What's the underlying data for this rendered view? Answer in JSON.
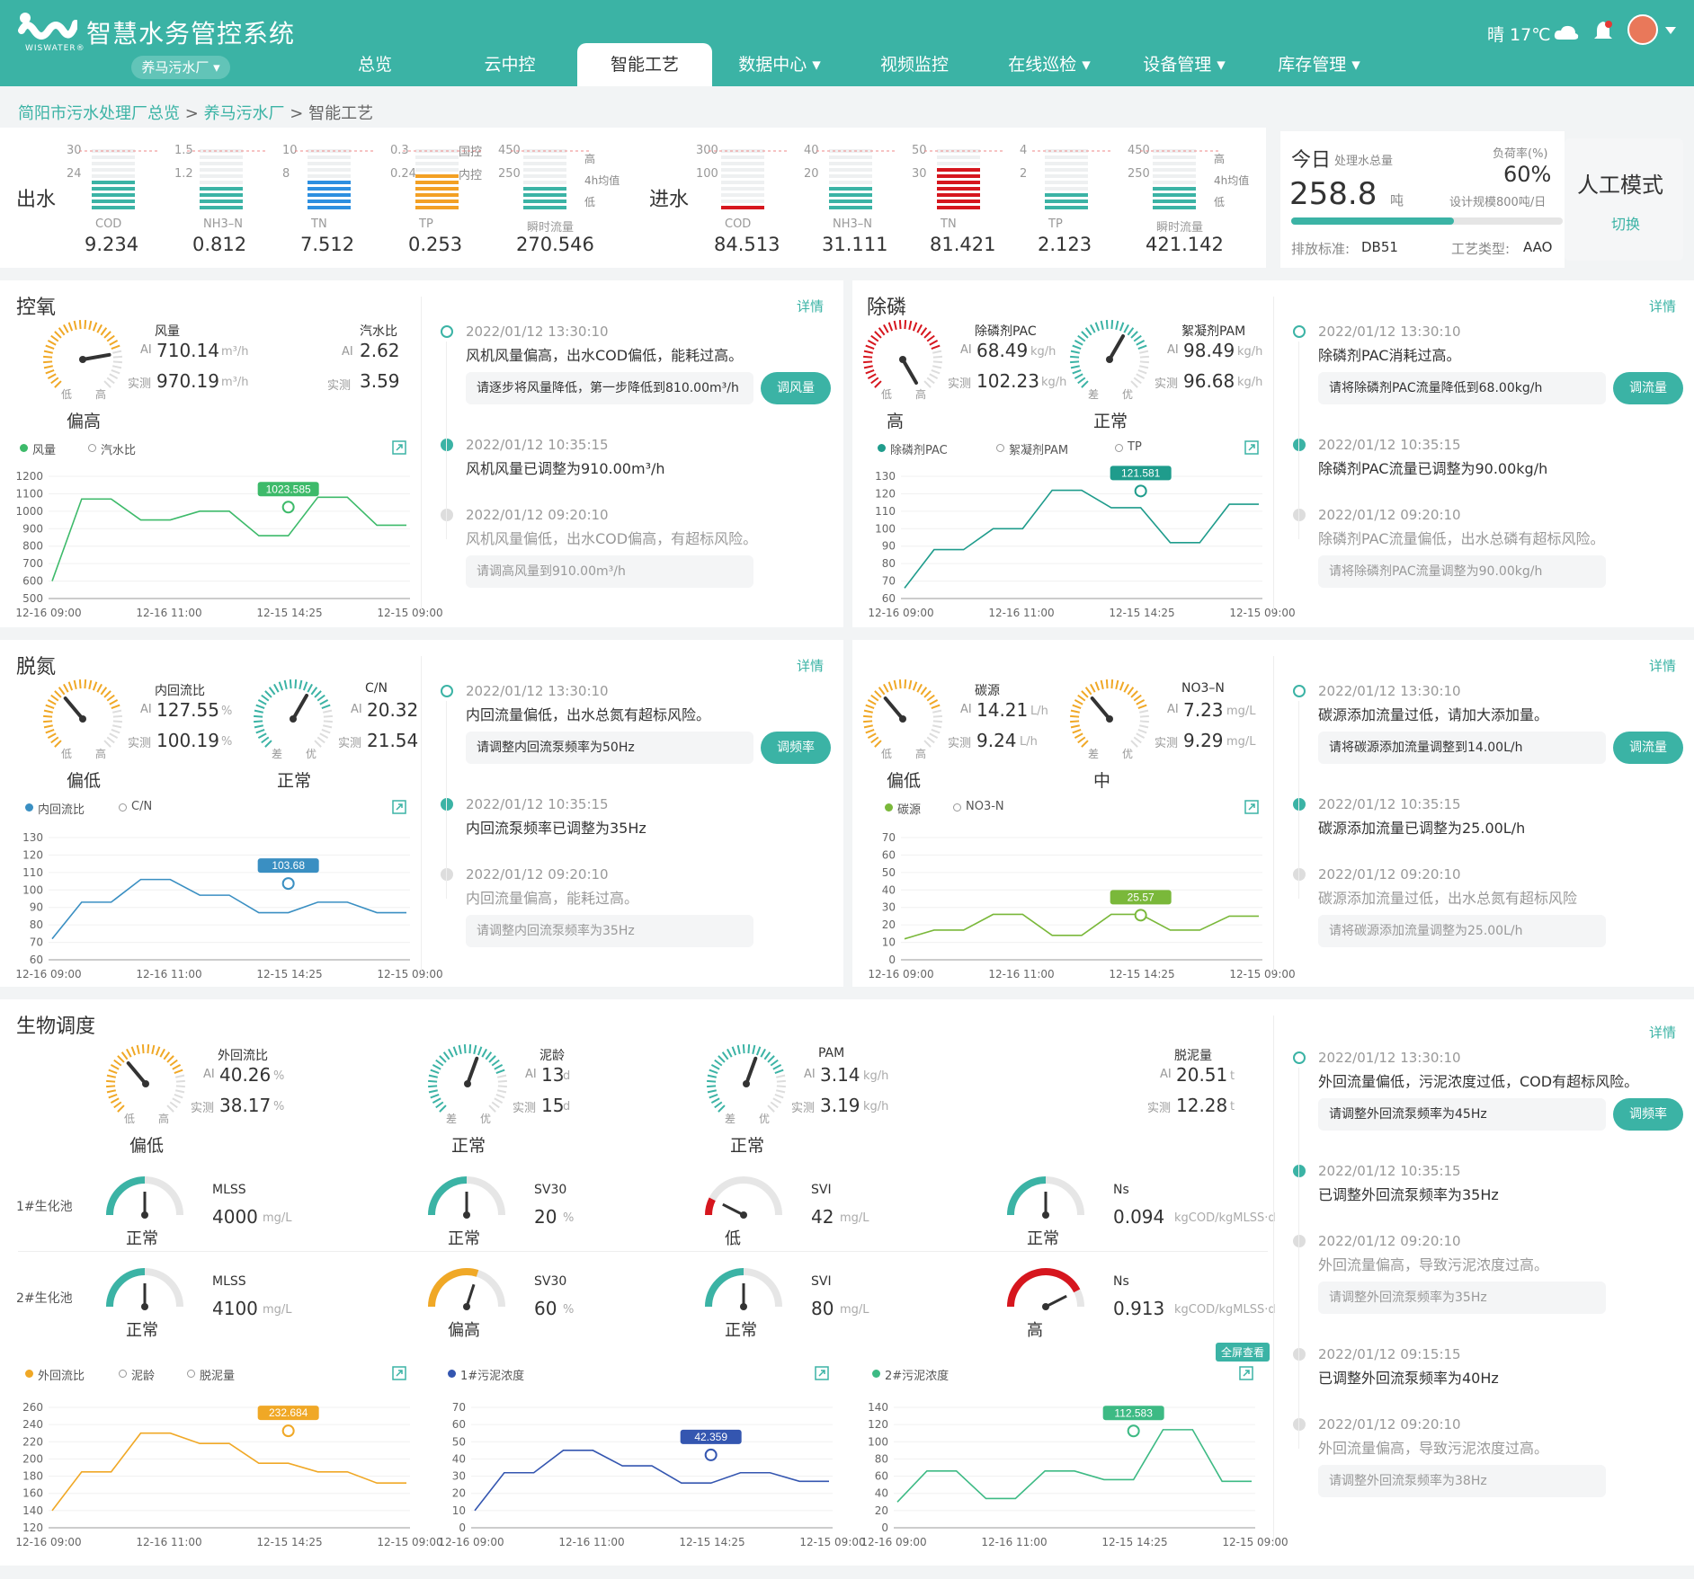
{
  "header": {
    "app_title": "智慧水务管控系统",
    "logo_sub": "WISWATER®",
    "plant": "养马污水厂 ▾",
    "weather": "晴 17℃"
  },
  "nav": [
    {
      "label": "总览"
    },
    {
      "label": "云中控"
    },
    {
      "label": "智能工艺"
    },
    {
      "label": "数据中心 ▾"
    },
    {
      "label": "视频监控"
    },
    {
      "label": "在线巡检 ▾"
    },
    {
      "label": "设备管理 ▾"
    },
    {
      "label": "库存管理 ▾"
    }
  ],
  "breadcrumb": {
    "a": "简阳市污水处理厂总览",
    "sep": ">",
    "b": "养马污水厂",
    "c": "智能工艺"
  },
  "outflow": {
    "label": "出水",
    "std_top": "国控",
    "std_mid": "内控",
    "flow_legend": [
      "高",
      "4h均值",
      "低"
    ],
    "items": [
      {
        "name": "COD",
        "value": "9.234",
        "top": "30",
        "mid": "24",
        "color": "#3bb3a5"
      },
      {
        "name": "NH3–N",
        "value": "0.812",
        "top": "1.5",
        "mid": "1.2",
        "color": "#3bb3a5"
      },
      {
        "name": "TN",
        "value": "7.512",
        "top": "10",
        "mid": "8",
        "color": "#2d8fe0"
      },
      {
        "name": "TP",
        "value": "0.253",
        "top": "0.3",
        "mid": "0.24",
        "color": "#f3a024"
      },
      {
        "name": "瞬时流量",
        "value": "270.546",
        "top": "450",
        "mid": "250",
        "color": "#3bb3a5"
      }
    ]
  },
  "inflow": {
    "label": "进水",
    "flow_legend": [
      "高",
      "4h均值",
      "低"
    ],
    "items": [
      {
        "name": "COD",
        "value": "84.513",
        "top": "300",
        "mid": "100",
        "color": "#d6161e"
      },
      {
        "name": "NH3–N",
        "value": "31.111",
        "top": "40",
        "mid": "20",
        "color": "#3bb3a5"
      },
      {
        "name": "TN",
        "value": "81.421",
        "top": "50",
        "mid": "30",
        "color": "#d6161e"
      },
      {
        "name": "TP",
        "value": "2.123",
        "top": "4",
        "mid": "2",
        "color": "#3bb3a5"
      },
      {
        "name": "瞬时流量",
        "value": "421.142",
        "top": "450",
        "mid": "250",
        "color": "#3bb3a5"
      }
    ]
  },
  "today": {
    "label": "今日",
    "sub": "处理水总量",
    "value": "258.8",
    "unit": "吨",
    "load_label": "负荷率(%)",
    "load_value": "60%",
    "capacity": "设计规模800吨/日",
    "load_fraction": 0.6,
    "std_label": "排放标准:",
    "std_value": "DB51",
    "proc_label": "工艺类型:",
    "proc_value": "AAO"
  },
  "mode": {
    "title": "人工模式",
    "switch": "切换"
  },
  "common": {
    "detail": "详情",
    "ai": "AI",
    "actual": "实测",
    "low": "低",
    "high": "高",
    "poor": "差",
    "good": "优",
    "fullscreen": "全屏查看"
  },
  "oxygen": {
    "title": "控氧",
    "g1": {
      "name": "风量",
      "ai": "710.14",
      "ai_unit": "m³/h",
      "act": "970.19",
      "act_unit": "m³/h",
      "status": "偏高"
    },
    "g2": {
      "name": "汽水比",
      "ai": "2.62",
      "act": "3.59"
    },
    "legend": [
      "风量",
      "汽水比"
    ],
    "timeline": [
      {
        "time": "2022/01/12  13:30:10",
        "msg": "风机风量偏高，出水COD偏低，能耗过高。",
        "box": "请逐步将风量降低，第一步降低到810.00m³/h",
        "btn": "调风量"
      },
      {
        "time": "2022/01/12  10:35:15",
        "msg": "风机风量已调整为910.00m³/h"
      },
      {
        "time": "2022/01/12  09:20:10",
        "msg": "风机风量偏低，出水COD偏高，有超标风险。",
        "box": "请调高风量到910.00m³/h"
      }
    ]
  },
  "phos": {
    "title": "除磷",
    "g1": {
      "name": "除磷剂PAC",
      "ai": "68.49",
      "ai_unit": "kg/h",
      "act": "102.23",
      "act_unit": "kg/h",
      "status": "高"
    },
    "g2": {
      "name": "絮凝剂PAM",
      "ai": "98.49",
      "ai_unit": "kg/h",
      "act": "96.68",
      "act_unit": "kg/h",
      "status": "正常"
    },
    "legend": [
      "除磷剂PAC",
      "絮凝剂PAM",
      "TP"
    ],
    "timeline": [
      {
        "time": "2022/01/12  13:30:10",
        "msg": "除磷剂PAC消耗过高。",
        "box": "请将除磷剂PAC流量降低到68.00kg/h",
        "btn": "调流量"
      },
      {
        "time": "2022/01/12  10:35:15",
        "msg": "除磷剂PAC流量已调整为90.00kg/h"
      },
      {
        "time": "2022/01/12  09:20:10",
        "msg": "除磷剂PAC流量偏低，出水总磷有超标风险。",
        "box": "请将除磷剂PAC流量调整为90.00kg/h"
      }
    ]
  },
  "denit": {
    "title": "脱氮",
    "g1": {
      "name": "内回流比",
      "ai": "127.55",
      "ai_unit": "%",
      "act": "100.19",
      "act_unit": "%",
      "status": "偏低"
    },
    "g2": {
      "name": "C/N",
      "ai": "20.32",
      "act": "21.54",
      "status": "正常"
    },
    "legend": [
      "内回流比",
      "C/N"
    ],
    "timeline": [
      {
        "time": "2022/01/12  13:30:10",
        "msg": "内回流量偏低，出水总氮有超标风险。",
        "box": "请调整内回流泵频率为50Hz",
        "btn": "调频率"
      },
      {
        "time": "2022/01/12  10:35:15",
        "msg": "内回流泵频率已调整为35Hz"
      },
      {
        "time": "2022/01/12  09:20:10",
        "msg": "内回流量偏高，能耗过高。",
        "box": "请调整内回流泵频率为35Hz"
      }
    ]
  },
  "carbon": {
    "g1": {
      "name": "碳源",
      "ai": "14.21",
      "ai_unit": "L/h",
      "act": "9.24",
      "act_unit": "L/h",
      "status": "偏低"
    },
    "g2": {
      "name": "NO3–N",
      "ai": "7.23",
      "ai_unit": "mg/L",
      "act": "9.29",
      "act_unit": "mg/L",
      "status": "中"
    },
    "legend": [
      "碳源",
      "NO3-N"
    ],
    "timeline": [
      {
        "time": "2022/01/12  13:30:10",
        "msg": "碳源添加流量过低，请加大添加量。",
        "box": "请将碳源添加流量调整到14.00L/h",
        "btn": "调流量"
      },
      {
        "time": "2022/01/12  10:35:15",
        "msg": "碳源添加流量已调整为25.00L/h"
      },
      {
        "time": "2022/01/12  09:20:10",
        "msg": "碳源添加流量过低，出水总氮有超标风险",
        "box": "请将碳源添加流量调整为25.00L/h"
      }
    ]
  },
  "bio": {
    "title": "生物调度",
    "top": [
      {
        "name": "外回流比",
        "ai": "40.26",
        "ai_unit": "%",
        "act": "38.17",
        "act_unit": "%",
        "status": "偏低"
      },
      {
        "name": "泥龄",
        "ai": "13",
        "ai_unit": "d",
        "act": "15",
        "act_unit": "d",
        "status": "正常"
      },
      {
        "name": "PAM",
        "ai": "3.14",
        "ai_unit": "kg/h",
        "act": "3.19",
        "act_unit": "kg/h",
        "status": "正常"
      },
      {
        "name": "脱泥量",
        "ai": "20.51",
        "ai_unit": "t",
        "act": "12.28",
        "act_unit": "t"
      }
    ],
    "pool1": {
      "label": "1#生化池",
      "items": [
        {
          "name": "MLSS",
          "value": "4000",
          "unit": "mg/L",
          "status": "正常"
        },
        {
          "name": "SV30",
          "value": "20",
          "unit": "%",
          "status": "正常"
        },
        {
          "name": "SVI",
          "value": "42",
          "unit": "mg/L",
          "status": "低"
        },
        {
          "name": "Ns",
          "value": "0.094",
          "unit": "kgCOD/kgMLSS·d",
          "status": "正常"
        }
      ]
    },
    "pool2": {
      "label": "2#生化池",
      "items": [
        {
          "name": "MLSS",
          "value": "4100",
          "unit": "mg/L",
          "status": "正常"
        },
        {
          "name": "SV30",
          "value": "60",
          "unit": "%",
          "status": "偏高"
        },
        {
          "name": "SVI",
          "value": "80",
          "unit": "mg/L",
          "status": "正常"
        },
        {
          "name": "Ns",
          "value": "0.913",
          "unit": "kgCOD/kgMLSS·d",
          "status": "高"
        }
      ]
    },
    "legend1": [
      "外回流比",
      "泥龄",
      "脱泥量"
    ],
    "legend2": [
      "1#污泥浓度"
    ],
    "legend3": [
      "2#污泥浓度"
    ],
    "timeline": [
      {
        "time": "2022/01/12  13:30:10",
        "msg": "外回流量偏低，污泥浓度过低，COD有超标风险。",
        "box": "请调整外回流泵频率为45Hz",
        "btn": "调频率"
      },
      {
        "time": "2022/01/12  10:35:15",
        "msg": "已调整外回流泵频率为35Hz"
      },
      {
        "time": "2022/01/12  09:20:10",
        "msg": "外回流量偏高，导致污泥浓度过高。",
        "box": "请调整外回流泵频率为35Hz"
      },
      {
        "time": "2022/01/12  09:15:15",
        "msg": "已调整外回流泵频率为40Hz"
      },
      {
        "time": "2022/01/12  09:20:10",
        "msg": "外回流量偏高，导致污泥浓度过高。",
        "box": "请调整外回流泵频率为38Hz"
      }
    ]
  },
  "chart_data": [
    {
      "id": "oxygen",
      "type": "line",
      "color": "#3dba6a",
      "x_labels": [
        "12-16 09:00",
        "12-16 11:00",
        "12-15 14:25",
        "12-15 09:00"
      ],
      "ylim": [
        500,
        1200
      ],
      "yticks": [
        "1200",
        "1100",
        "1000",
        "900",
        "800",
        "700",
        "600",
        "500"
      ],
      "series": [
        {
          "name": "风量",
          "values": [
            600,
            1070,
            1070,
            950,
            950,
            1000,
            1000,
            860,
            860,
            1080,
            1080,
            920,
            920
          ]
        }
      ],
      "highlight": {
        "value": "1023.585"
      }
    },
    {
      "id": "phos",
      "type": "line",
      "color": "#1f9c8c",
      "x_labels": [
        "12-16 09:00",
        "12-16 11:00",
        "12-15 14:25",
        "12-15 09:00"
      ],
      "ylim": [
        60,
        130
      ],
      "yticks": [
        "130",
        "120",
        "110",
        "100",
        "90",
        "80",
        "70",
        "60"
      ],
      "series": [
        {
          "name": "除磷剂PAC",
          "values": [
            66,
            88,
            88,
            100,
            100,
            122,
            122,
            112,
            112,
            92,
            92,
            114,
            114
          ]
        }
      ],
      "highlight": {
        "value": "121.581"
      }
    },
    {
      "id": "denit",
      "type": "line",
      "color": "#3a8fc2",
      "x_labels": [
        "12-16 09:00",
        "12-16 11:00",
        "12-15 14:25",
        "12-15 09:00"
      ],
      "ylim": [
        60,
        130
      ],
      "yticks": [
        "130",
        "120",
        "110",
        "100",
        "90",
        "80",
        "70",
        "60"
      ],
      "series": [
        {
          "name": "内回流比",
          "values": [
            72,
            93,
            93,
            106,
            106,
            97,
            97,
            87,
            87,
            93,
            93,
            87,
            87
          ]
        }
      ],
      "highlight": {
        "value": "103.68"
      }
    },
    {
      "id": "carbon",
      "type": "line",
      "color": "#7ab83a",
      "x_labels": [
        "12-16 09:00",
        "12-16 11:00",
        "12-15 14:25",
        "12-15 09:00"
      ],
      "ylim": [
        0,
        70
      ],
      "yticks": [
        "70",
        "60",
        "50",
        "40",
        "30",
        "20",
        "10",
        "0"
      ],
      "series": [
        {
          "name": "碳源",
          "values": [
            12,
            17,
            17,
            26,
            26,
            14,
            14,
            26,
            26,
            17,
            17,
            25,
            25
          ]
        }
      ],
      "highlight": {
        "value": "25.57"
      }
    },
    {
      "id": "bio1",
      "type": "line",
      "color": "#f0a826",
      "x_labels": [
        "12-16 09:00",
        "12-16 11:00",
        "12-15 14:25",
        "12-15 09:00"
      ],
      "ylim": [
        120,
        260
      ],
      "yticks": [
        "260",
        "240",
        "220",
        "200",
        "180",
        "160",
        "140",
        "120"
      ],
      "series": [
        {
          "name": "外回流比",
          "values": [
            140,
            185,
            185,
            230,
            230,
            218,
            218,
            195,
            195,
            185,
            185,
            172,
            172
          ]
        }
      ],
      "highlight": {
        "value": "232.684"
      }
    },
    {
      "id": "bio2",
      "type": "line",
      "color": "#3456b0",
      "x_labels": [
        "12-16 09:00",
        "12-16 11:00",
        "12-15 14:25",
        "12-15 09:00"
      ],
      "ylim": [
        0,
        70
      ],
      "yticks": [
        "70",
        "60",
        "50",
        "40",
        "30",
        "20",
        "10",
        "0"
      ],
      "series": [
        {
          "name": "1#污泥浓度",
          "values": [
            10,
            32,
            32,
            45,
            45,
            36,
            36,
            26,
            26,
            32,
            32,
            27,
            27
          ]
        }
      ],
      "highlight": {
        "value": "42.359"
      }
    },
    {
      "id": "bio3",
      "type": "line",
      "color": "#3dba84",
      "x_labels": [
        "12-16 09:00",
        "12-16 11:00",
        "12-15 14:25",
        "12-15 09:00"
      ],
      "ylim": [
        0,
        140
      ],
      "yticks": [
        "140",
        "120",
        "100",
        "80",
        "60",
        "40",
        "20",
        "0"
      ],
      "series": [
        {
          "name": "2#污泥浓度",
          "values": [
            30,
            66,
            66,
            34,
            34,
            66,
            66,
            56,
            56,
            114,
            114,
            54,
            54
          ]
        }
      ],
      "highlight": {
        "value": "112.583"
      }
    }
  ],
  "colors": {
    "primary": "#3bb3a5",
    "orange": "#f0a826",
    "red": "#d6161e",
    "blue": "#2d8fe0"
  }
}
